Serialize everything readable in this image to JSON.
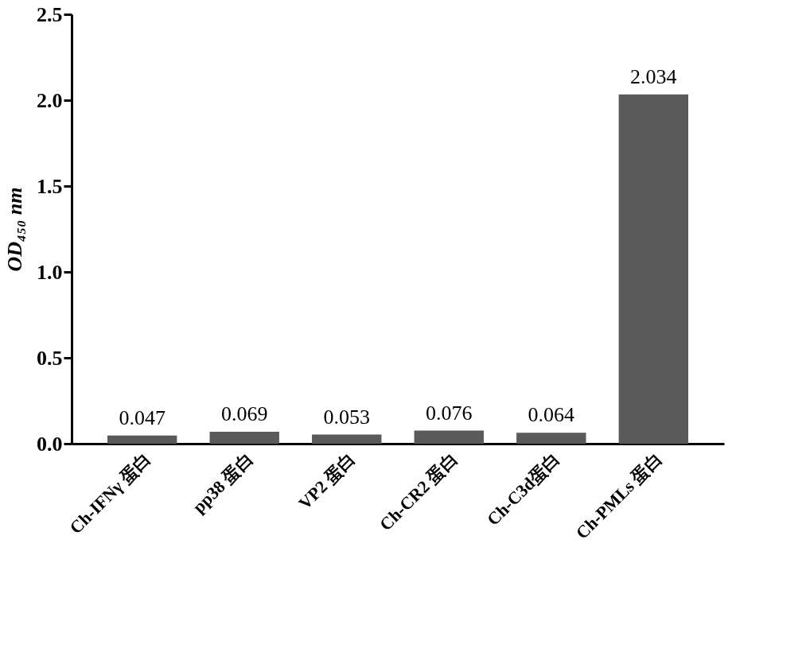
{
  "chart_data": {
    "type": "bar",
    "ylabel": "OD₄₅₀ nm",
    "categories": [
      "Ch-IFNγ 蛋白",
      "pp38 蛋白",
      "VP2 蛋白",
      "Ch-CR2 蛋白",
      "Ch-C3d蛋白",
      "Ch-PMLs 蛋白"
    ],
    "values": [
      0.047,
      0.069,
      0.053,
      0.076,
      0.064,
      2.034
    ],
    "color": "#5a5a5a",
    "ylim": [
      0,
      2.5
    ],
    "yticks": [
      {
        "value": 0,
        "label": "0.0"
      },
      0.5,
      {
        "value": 1,
        "label": "1.0"
      },
      1.5,
      {
        "value": 2,
        "label": "2.0"
      },
      2.5
    ],
    "data_labels": true,
    "grid": false
  }
}
